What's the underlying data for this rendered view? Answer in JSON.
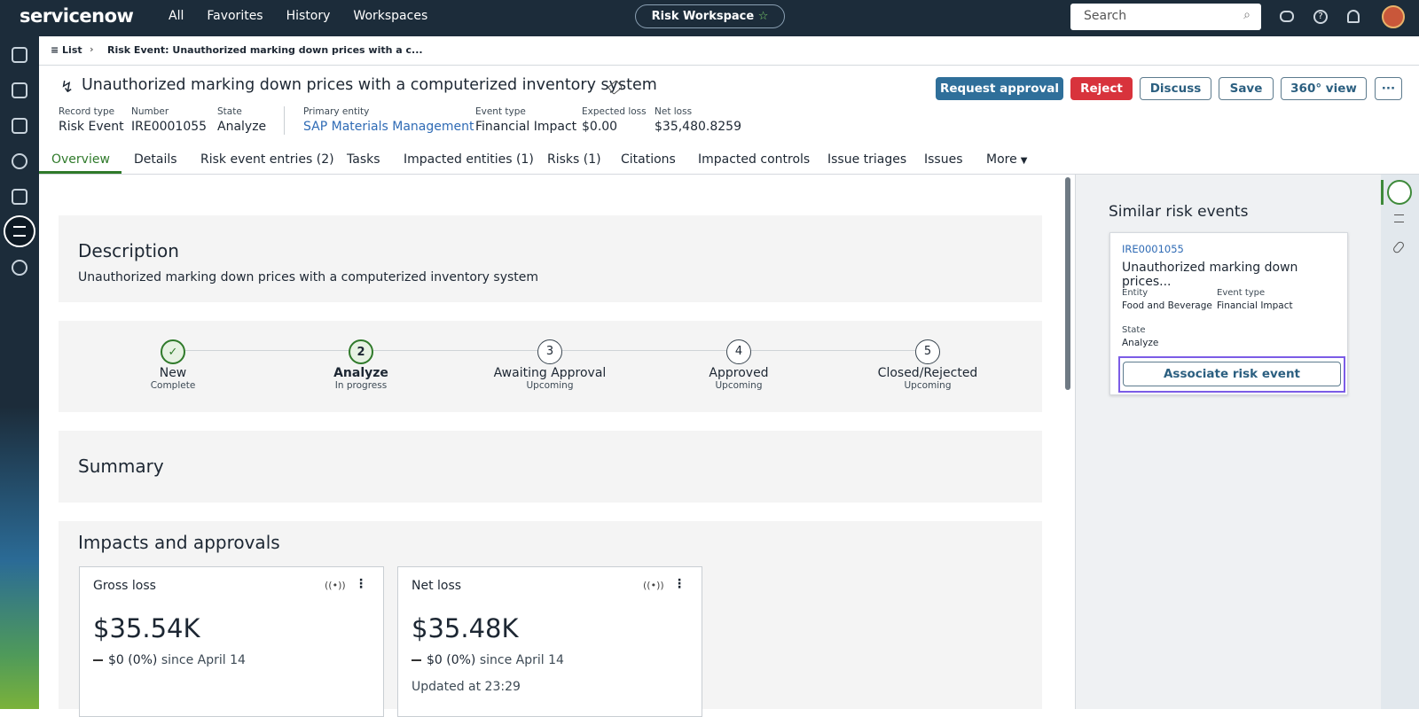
{
  "top_nav": {
    "logo": "servicenow",
    "menu": [
      "All",
      "Favorites",
      "History",
      "Workspaces"
    ],
    "workspace": "Risk Workspace",
    "search": "Search"
  },
  "breadcrumb": {
    "list": "List",
    "current": "Risk Event: Unauthorized marking down prices with a c..."
  },
  "record": {
    "title": "Unauthorized marking down prices with a computerized inventory system",
    "actions": [
      "Request approval",
      "Reject",
      "Discuss",
      "Save",
      "360° view"
    ],
    "fields": [
      {
        "label": "Record type",
        "value": "Risk Event"
      },
      {
        "label": "Number",
        "value": "IRE0001055"
      },
      {
        "label": "State",
        "value": "Analyze"
      },
      {
        "label": "Primary entity",
        "value": "SAP Materials Management"
      },
      {
        "label": "Event type",
        "value": "Financial Impact"
      },
      {
        "label": "Expected loss",
        "value": "$0.00"
      },
      {
        "label": "Net loss",
        "value": "$35,480.8259"
      }
    ]
  },
  "tabs": [
    "Overview",
    "Details",
    "Risk event entries (2)",
    "Tasks",
    "Impacted entities (1)",
    "Risks (1)",
    "Citations",
    "Impacted controls",
    "Issue triages",
    "Issues",
    "More"
  ],
  "description": {
    "heading": "Description",
    "text": "Unauthorized marking down prices with a computerized inventory system"
  },
  "stages": [
    {
      "name": "New",
      "status": "Complete"
    },
    {
      "number": "2",
      "name": "Analyze",
      "status": "In progress"
    },
    {
      "number": "3",
      "name": "Awaiting Approval",
      "status": "Upcoming"
    },
    {
      "number": "4",
      "name": "Approved",
      "status": "Upcoming"
    },
    {
      "number": "5",
      "name": "Closed/Rejected",
      "status": "Upcoming"
    }
  ],
  "summary": {
    "heading": "Summary"
  },
  "impacts": {
    "heading": "Impacts and approvals",
    "cards": [
      {
        "title": "Gross loss",
        "value": "$35.54K",
        "change": "$0 (0%)",
        "since": "since April 14"
      },
      {
        "title": "Net loss",
        "value": "$35.48K",
        "change": "$0 (0%)",
        "since": "since April 14",
        "updated": "Updated at 23:29"
      }
    ]
  },
  "similar": {
    "heading": "Similar risk events",
    "number": "IRE0001055",
    "title": "Unauthorized marking down prices...",
    "fields": [
      {
        "label": "Entity",
        "value": "Food and Beverage"
      },
      {
        "label": "Event type",
        "value": "Financial Impact"
      },
      {
        "label": "State",
        "value": "Analyze"
      }
    ],
    "button": "Associate risk event"
  }
}
